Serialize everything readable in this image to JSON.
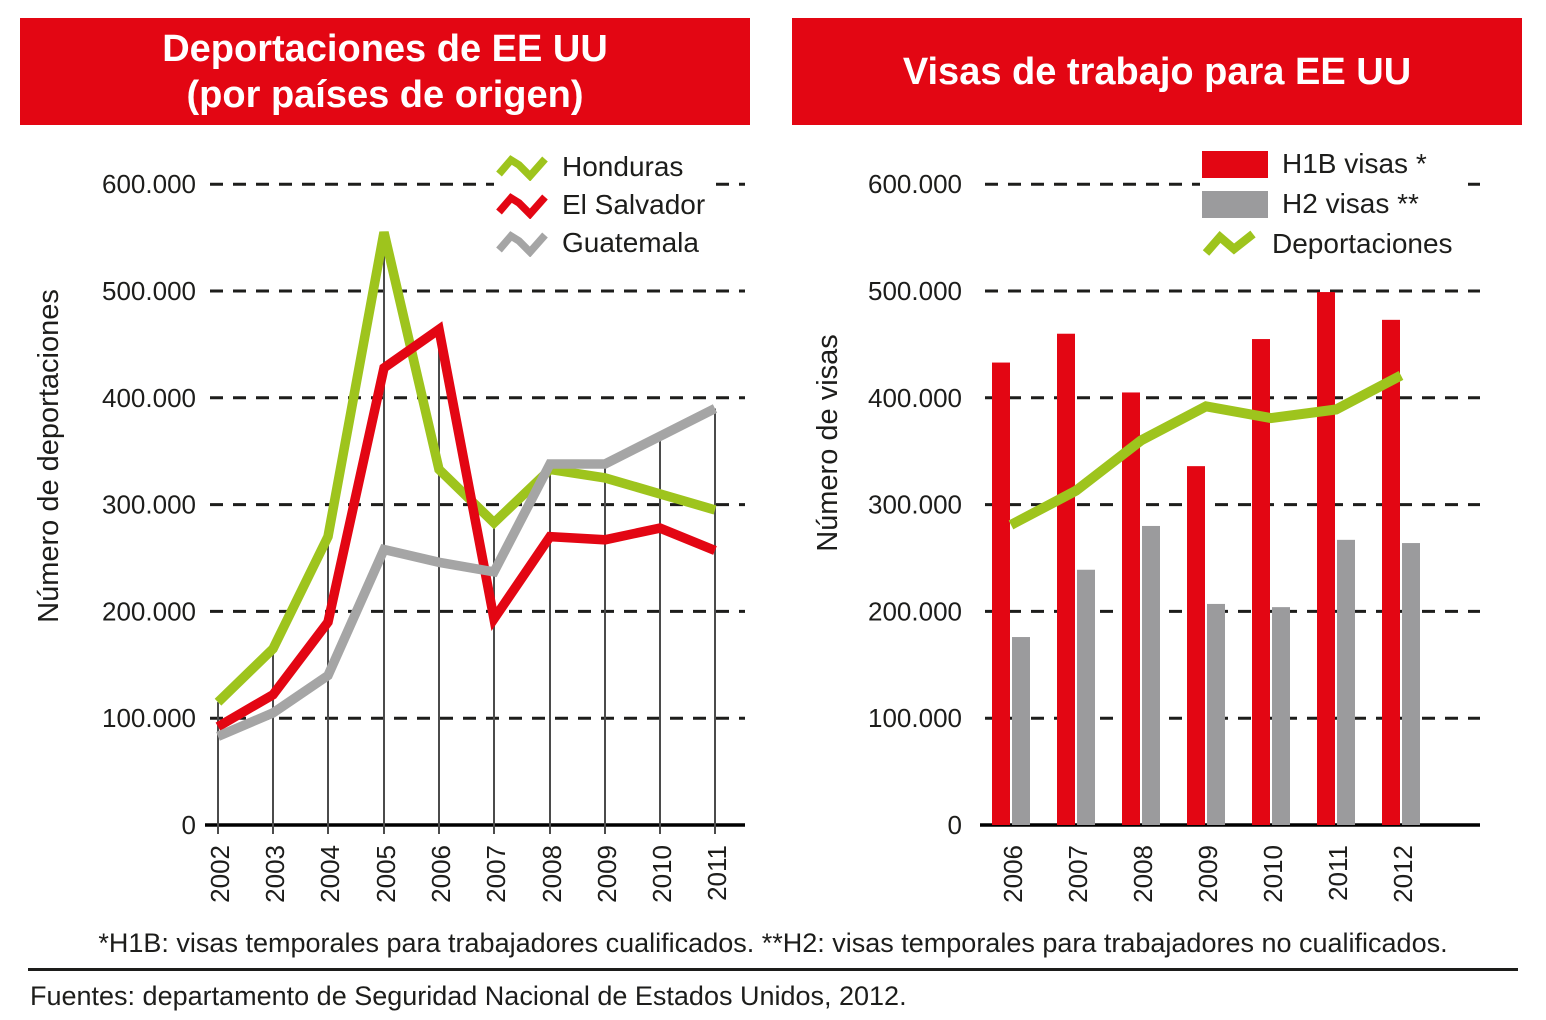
{
  "colors": {
    "banner_red": "#e30613",
    "series_red": "#e30613",
    "series_green": "#9ec41d",
    "series_gray": "#a5a5a5",
    "bar_gray": "#9b9b9d",
    "text": "#1d1d1b",
    "vertical_guide": "#4b4b4b"
  },
  "footnote": "*H1B: visas temporales para trabajadores cualificados. **H2: visas temporales para trabajadores no cualificados.",
  "source": "Fuentes: departamento de Seguridad Nacional de Estados Unidos, 2012.",
  "chart_data": [
    {
      "type": "line",
      "title": "Deportaciones de EE UU (por países de origen)",
      "title_lines": [
        "Deportaciones de EE UU",
        "(por países de origen)"
      ],
      "ylabel": "Número de deportaciones",
      "xlabel": "",
      "categories": [
        "2002",
        "2003",
        "2004",
        "2005",
        "2006",
        "2007",
        "2008",
        "2009",
        "2010",
        "2011"
      ],
      "series": [
        {
          "name": "Honduras",
          "color": "#9ec41d",
          "values": [
            115000,
            165000,
            270000,
            555000,
            333000,
            283000,
            333000,
            325000,
            310000,
            295000
          ]
        },
        {
          "name": "El Salvador",
          "color": "#e30613",
          "values": [
            92000,
            122000,
            190000,
            428000,
            464000,
            193000,
            270000,
            267000,
            278000,
            257000
          ]
        },
        {
          "name": "Guatemala",
          "color": "#a5a5a5",
          "values": [
            83000,
            105000,
            140000,
            258000,
            246000,
            237000,
            338000,
            338000,
            364000,
            390000
          ]
        }
      ],
      "ylim": [
        0,
        600000
      ],
      "y_tick_step": 100000,
      "y_tick_labels": [
        "600.000",
        "500.000",
        "400.000",
        "300.000",
        "200.000",
        "100.000",
        "0"
      ],
      "grid": "dashed-horizontal-plus-vertical-guides",
      "legend_position": "top-right"
    },
    {
      "type": "bar+line",
      "title": "Visas de trabajo para EE UU",
      "ylabel": "Número de visas",
      "xlabel": "",
      "categories": [
        "2006",
        "2007",
        "2008",
        "2009",
        "2010",
        "2011",
        "2012"
      ],
      "bar_series": [
        {
          "name": "H1B visas *",
          "color": "#e30613",
          "values": [
            433000,
            460000,
            405000,
            336000,
            455000,
            499000,
            473000
          ]
        },
        {
          "name": "H2 visas **",
          "color": "#9b9b9d",
          "values": [
            176000,
            239000,
            280000,
            207000,
            204000,
            267000,
            264000
          ]
        }
      ],
      "line_series": [
        {
          "name": "Deportaciones",
          "color": "#9ec41d",
          "values": [
            281000,
            313000,
            360000,
            392000,
            381000,
            389000,
            421000
          ]
        }
      ],
      "ylim": [
        0,
        600000
      ],
      "y_tick_step": 100000,
      "y_tick_labels": [
        "600.000",
        "500.000",
        "400.000",
        "300.000",
        "200.000",
        "100.000",
        "0"
      ],
      "grid": "dashed-horizontal",
      "legend_position": "top-right"
    }
  ]
}
